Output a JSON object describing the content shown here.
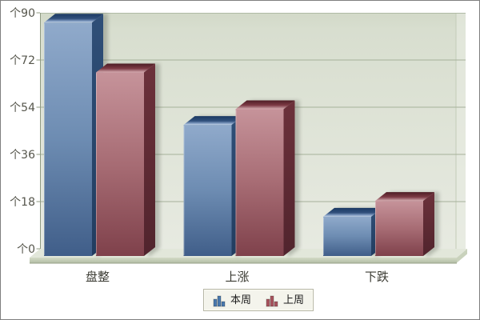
{
  "chart_data": {
    "type": "bar",
    "title": "",
    "categories": [
      "盘整",
      "上涨",
      "下跌"
    ],
    "series": [
      {
        "name": "本周",
        "color": "#4a79ae",
        "values": [
          89,
          50,
          15
        ]
      },
      {
        "name": "上周",
        "color": "#a8545e",
        "values": [
          70,
          56,
          21
        ]
      }
    ],
    "y_axis": {
      "unit_prefix": "个",
      "ticks": [
        90,
        72,
        54,
        36,
        18,
        0
      ],
      "min": 0,
      "max": 90,
      "tick_step": 18
    },
    "grid": true,
    "legend_position": "bottom",
    "style": "3d-bars"
  },
  "colors": {
    "wall_top": "#d2d9c8",
    "wall_bottom": "#e7eae1",
    "wall_strip": "#e9ece3",
    "gridline": "#a6b19a",
    "wall_edge": "#b0baa5",
    "axis": "#8f9a82",
    "floor_top": "#e2e7da",
    "floor_front_light": "#d3dac6",
    "floor_front_dark": "#b4bfa7",
    "floor_side": "#c9d2bc",
    "floor_bottom_line": "#97a287",
    "y_label": "#56564c",
    "category_label": "#3b3b33",
    "blue_front_top": "#90aacb",
    "blue_front_mid": "#6d8cb2",
    "blue_front_bottom": "#405e89",
    "blue_side_top": "#2f4f78",
    "blue_side_bottom": "#223d60",
    "blue_top_back": "#1b3962",
    "blue_top_front": "#c2d2e6",
    "red_front_top": "#c6939a",
    "red_front_mid": "#a76c74",
    "red_front_bottom": "#7f414b",
    "red_side_top": "#6c313b",
    "red_side_bottom": "#51242d",
    "red_top_back": "#4e1d25",
    "red_top_front": "#d9aeb3",
    "legend_bg": "#f4f4ec",
    "legend_border": "#b7b7a6"
  }
}
